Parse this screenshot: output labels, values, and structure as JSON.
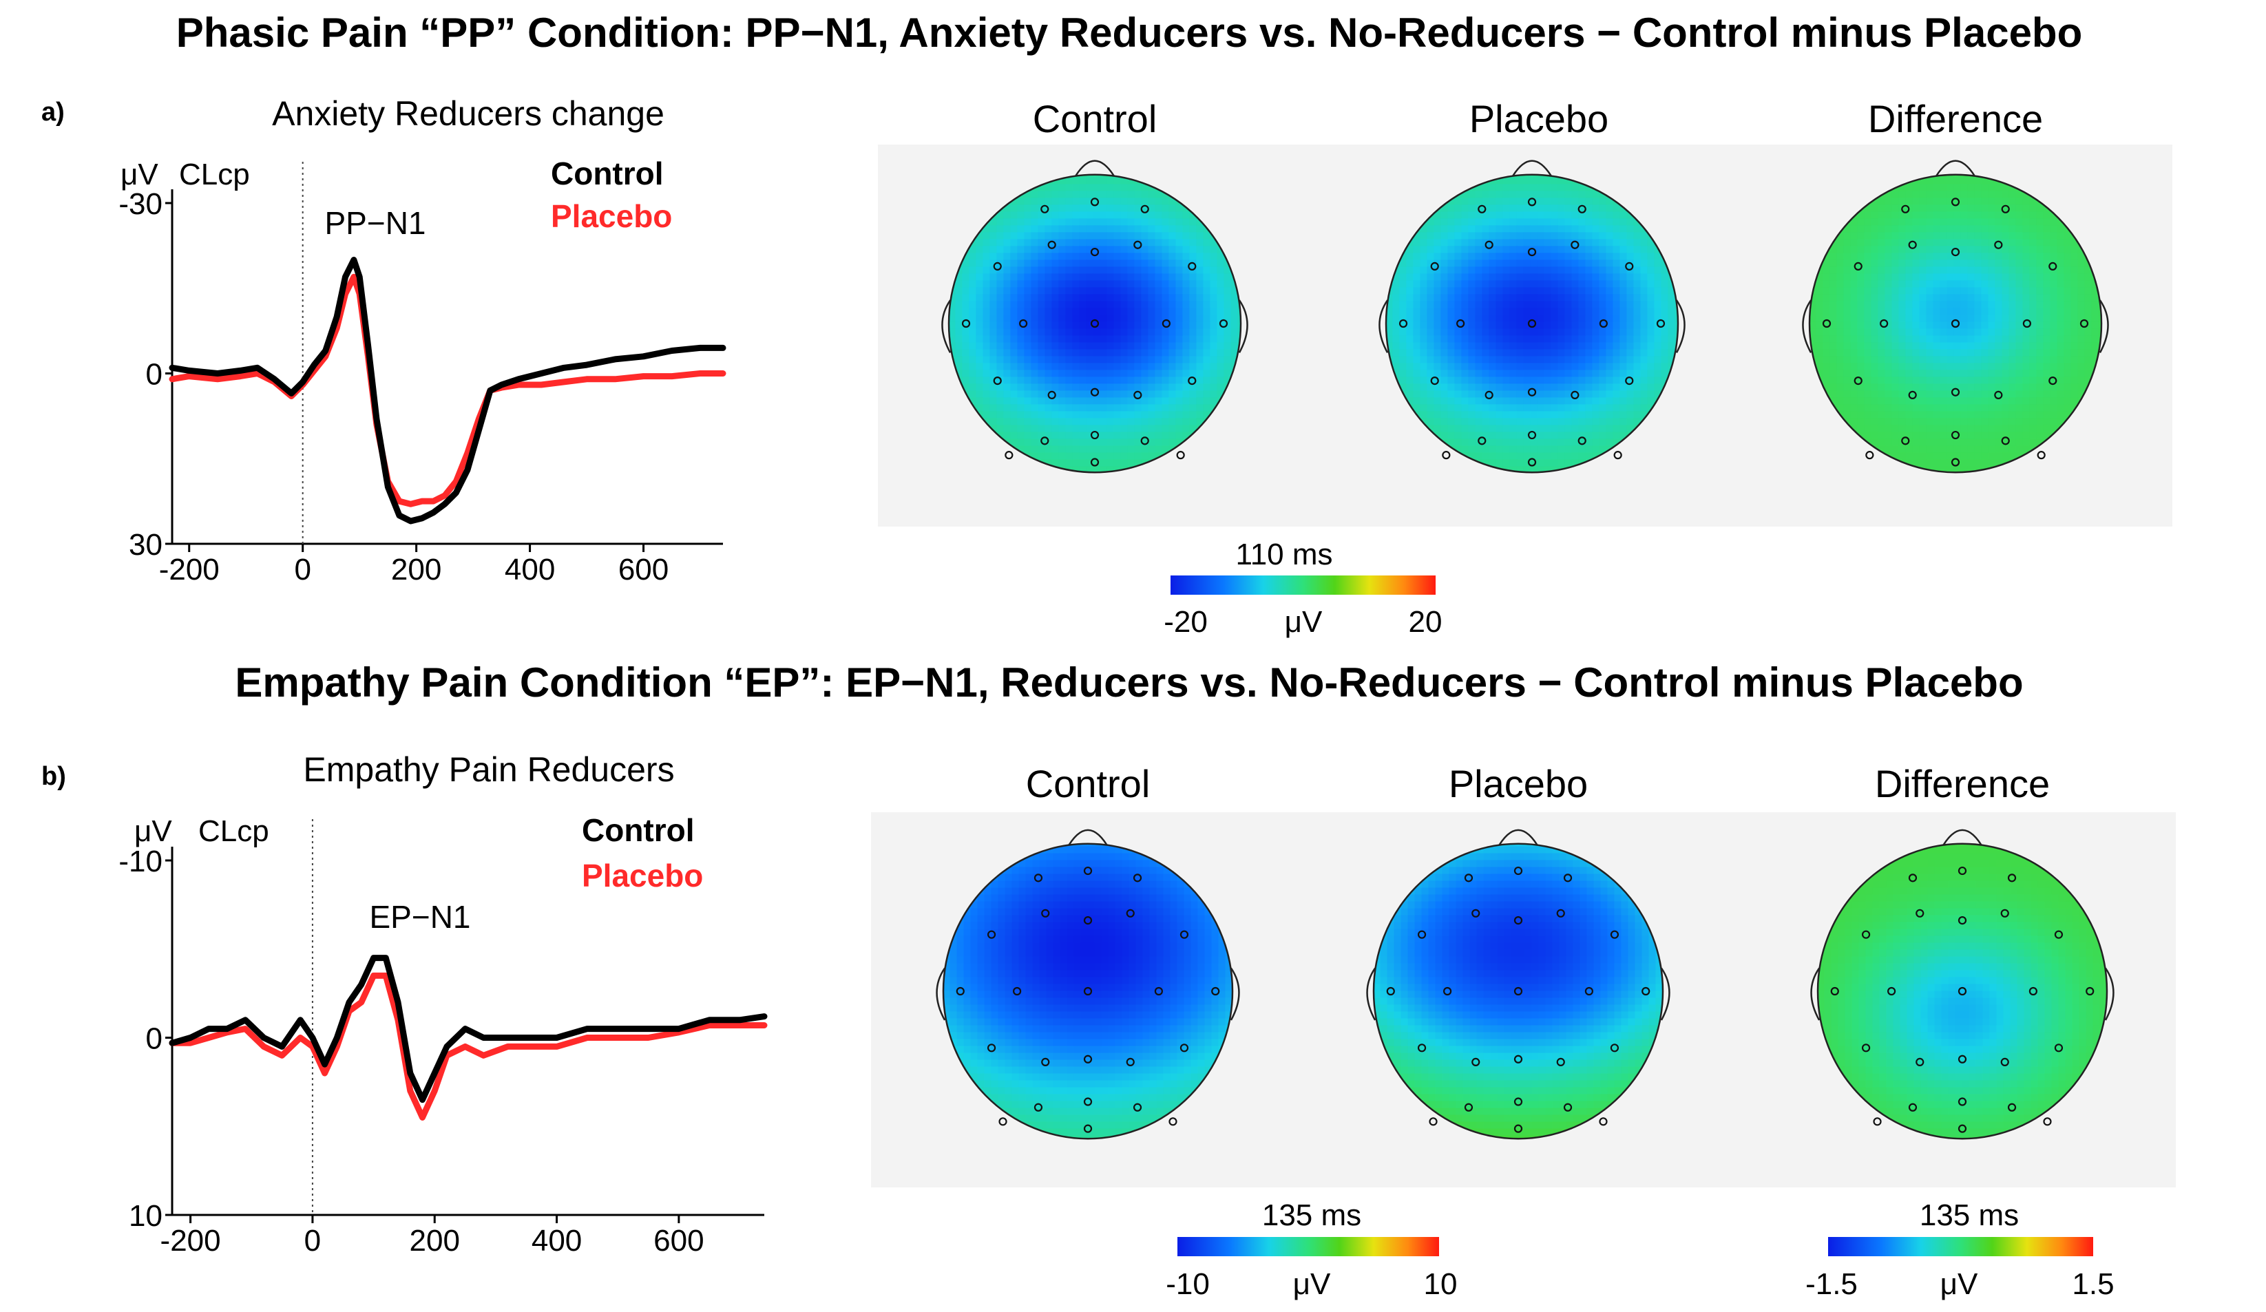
{
  "figure": {
    "title_a": "Phasic Pain “PP” Condition: PP−N1, Anxiety Reducers vs. No-Reducers − Control minus Placebo",
    "title_b": "Empathy Pain Condition “EP”: EP−N1, Reducers vs. No-Reducers − Control minus Placebo",
    "panel_a_letter": "a)",
    "panel_b_letter": "b)"
  },
  "colors": {
    "control": "#000000",
    "placebo": "#ff2a2a"
  },
  "chart_data": [
    {
      "type": "line",
      "panel": "a",
      "title": "Anxiety Reducers change",
      "ylabel_unit": "μV",
      "channel": "CLcp",
      "peak_label": "PP−N1",
      "xlim": [
        -230,
        740
      ],
      "ylim": [
        30,
        -30
      ],
      "xticks": [
        -200,
        0,
        200,
        400,
        600
      ],
      "xtick_labels": [
        "-200",
        "0",
        "200",
        "400",
        "600"
      ],
      "yticks": [
        -30,
        0,
        30
      ],
      "ytick_labels": [
        "-30",
        "0",
        "30"
      ],
      "legend": [
        "Control",
        "Placebo"
      ],
      "series": [
        {
          "name": "Control",
          "x": [
            -230,
            -200,
            -150,
            -110,
            -80,
            -50,
            -20,
            0,
            20,
            40,
            60,
            75,
            90,
            100,
            115,
            130,
            150,
            170,
            190,
            210,
            230,
            250,
            270,
            290,
            310,
            330,
            350,
            380,
            420,
            460,
            500,
            550,
            600,
            650,
            700,
            740
          ],
          "y": [
            -1,
            -0.5,
            0,
            -0.5,
            -1,
            1,
            3.5,
            1.5,
            -1.5,
            -4,
            -10,
            -17,
            -20,
            -17,
            -5,
            8,
            20,
            25,
            26,
            25.5,
            24.5,
            23,
            21,
            17,
            10,
            3,
            2,
            1,
            0,
            -1,
            -1.5,
            -2.5,
            -3,
            -4,
            -4.5,
            -4.5
          ]
        },
        {
          "name": "Placebo",
          "x": [
            -230,
            -200,
            -150,
            -110,
            -80,
            -50,
            -20,
            0,
            20,
            40,
            60,
            75,
            90,
            100,
            115,
            130,
            150,
            170,
            190,
            210,
            230,
            250,
            270,
            290,
            310,
            330,
            350,
            380,
            420,
            460,
            500,
            550,
            600,
            650,
            700,
            740
          ],
          "y": [
            1,
            0.5,
            1,
            0.5,
            0,
            1.5,
            4,
            2,
            -0.5,
            -3,
            -8,
            -14,
            -17,
            -14,
            -3,
            9,
            19,
            22.5,
            23,
            22.5,
            22.5,
            21.5,
            19,
            14,
            8,
            3,
            2.5,
            2,
            2,
            1.5,
            1,
            1,
            0.5,
            0.5,
            0,
            0
          ]
        }
      ]
    },
    {
      "type": "line",
      "panel": "b",
      "title": "Empathy Pain Reducers",
      "ylabel_unit": "μV",
      "channel": "CLcp",
      "peak_label": "EP−N1",
      "xlim": [
        -230,
        740
      ],
      "ylim": [
        10,
        -10
      ],
      "xticks": [
        -200,
        0,
        200,
        400,
        600
      ],
      "xtick_labels": [
        "-200",
        "0",
        "200",
        "400",
        "600"
      ],
      "yticks": [
        -10,
        0,
        10
      ],
      "ytick_labels": [
        "-10",
        "0",
        "10"
      ],
      "legend": [
        "Control",
        "Placebo"
      ],
      "series": [
        {
          "name": "Control",
          "x": [
            -230,
            -200,
            -170,
            -140,
            -110,
            -80,
            -50,
            -20,
            0,
            20,
            40,
            60,
            80,
            100,
            120,
            140,
            160,
            180,
            200,
            220,
            250,
            280,
            320,
            360,
            400,
            450,
            500,
            550,
            600,
            650,
            700,
            740
          ],
          "y": [
            0.3,
            0,
            -0.5,
            -0.5,
            -1,
            0,
            0.5,
            -1,
            0,
            1.5,
            0,
            -2,
            -3,
            -4.5,
            -4.5,
            -2,
            2,
            3.5,
            2,
            0.5,
            -0.5,
            0,
            0,
            0,
            0,
            -0.5,
            -0.5,
            -0.5,
            -0.5,
            -1,
            -1,
            -1.2
          ]
        },
        {
          "name": "Placebo",
          "x": [
            -230,
            -200,
            -170,
            -140,
            -110,
            -80,
            -50,
            -20,
            0,
            20,
            40,
            60,
            80,
            100,
            120,
            140,
            160,
            180,
            200,
            220,
            250,
            280,
            320,
            360,
            400,
            450,
            500,
            550,
            600,
            650,
            700,
            740
          ],
          "y": [
            0.3,
            0.3,
            0,
            -0.3,
            -0.5,
            0.5,
            1,
            0,
            0.5,
            2,
            0.5,
            -1.5,
            -2,
            -3.5,
            -3.5,
            -1,
            3,
            4.5,
            3,
            1,
            0.5,
            1,
            0.5,
            0.5,
            0.5,
            0,
            0,
            0,
            -0.3,
            -0.7,
            -0.7,
            -0.7
          ]
        }
      ]
    },
    {
      "type": "heatmap",
      "panel": "a",
      "maps": [
        {
          "label": "Control",
          "center_value": -20,
          "edge_value": 0,
          "center": [
            0,
            -0.05
          ],
          "spread": [
            0.55,
            0.45
          ]
        },
        {
          "label": "Placebo",
          "center_value": -19,
          "edge_value": 0,
          "center": [
            0,
            -0.05
          ],
          "spread": [
            0.57,
            0.45
          ]
        },
        {
          "label": "Difference",
          "center_value": -8,
          "edge_value": 2,
          "center": [
            0,
            -0.08
          ],
          "spread": [
            0.4,
            0.36
          ]
        }
      ],
      "colorbars": [
        {
          "time_label": "110 ms",
          "min_label": "-20",
          "unit": "μV",
          "max_label": "20"
        }
      ]
    },
    {
      "type": "heatmap",
      "panel": "b",
      "maps": [
        {
          "label": "Control",
          "center_value": -10,
          "edge_value": 1,
          "center": [
            0,
            -0.3
          ],
          "spread": [
            0.9,
            0.7
          ]
        },
        {
          "label": "Placebo",
          "center_value": -9,
          "edge_value": 3,
          "center": [
            0,
            -0.3
          ],
          "spread": [
            0.9,
            0.65
          ]
        },
        {
          "label": "Difference",
          "center_value": -0.6,
          "edge_value": 0.2,
          "center": [
            0,
            0.15
          ],
          "spread": [
            0.45,
            0.4
          ]
        }
      ],
      "colorbars": [
        {
          "time_label": "135 ms",
          "min_label": "-10",
          "unit": "μV",
          "max_label": "10"
        },
        {
          "time_label": "135 ms",
          "min_label": "-1.5",
          "unit": "μV",
          "max_label": "1.5"
        }
      ]
    }
  ]
}
